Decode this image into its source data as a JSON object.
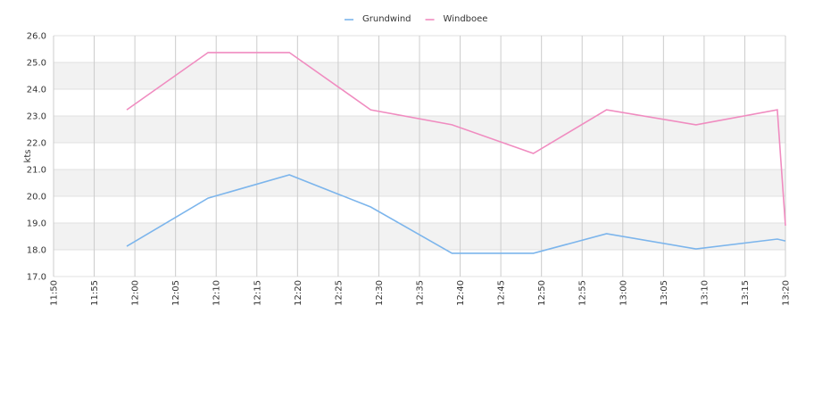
{
  "chart_data": {
    "type": "line",
    "y_label": "kts",
    "x": [
      "11:59",
      "12:09",
      "12:19",
      "12:29",
      "12:39",
      "12:49",
      "12:58",
      "13:09",
      "13:19",
      "13:20"
    ],
    "series": [
      {
        "name": "Grundwind",
        "color": "#7cb5ec",
        "values": [
          18.13,
          19.93,
          20.8,
          19.6,
          17.87,
          17.87,
          18.6,
          18.03,
          18.4,
          18.33
        ]
      },
      {
        "name": "Windboee",
        "color": "#f08cc0",
        "values": [
          23.23,
          25.37,
          25.37,
          23.23,
          22.67,
          21.6,
          23.23,
          22.67,
          23.23,
          18.9
        ]
      }
    ],
    "xlim": [
      "11:50",
      "13:20"
    ],
    "xticks": [
      "11:50",
      "11:55",
      "12:00",
      "12:05",
      "12:10",
      "12:15",
      "12:20",
      "12:25",
      "12:30",
      "12:35",
      "12:40",
      "12:45",
      "12:50",
      "12:55",
      "13:00",
      "13:05",
      "13:10",
      "13:15",
      "13:20"
    ],
    "ylim": [
      17,
      26
    ],
    "yticks": [
      {
        "value": 17,
        "label": "17.0"
      },
      {
        "value": 18,
        "label": "18.0"
      },
      {
        "value": 19,
        "label": "19.0"
      },
      {
        "value": 20,
        "label": "20.0"
      },
      {
        "value": 21,
        "label": "21.0"
      },
      {
        "value": 22,
        "label": "22.0"
      },
      {
        "value": 23,
        "label": "23.0"
      },
      {
        "value": 24,
        "label": "24.0"
      },
      {
        "value": 25,
        "label": "25.0"
      },
      {
        "value": 26,
        "label": "26.0"
      }
    ],
    "grid": true,
    "legend": "top"
  }
}
